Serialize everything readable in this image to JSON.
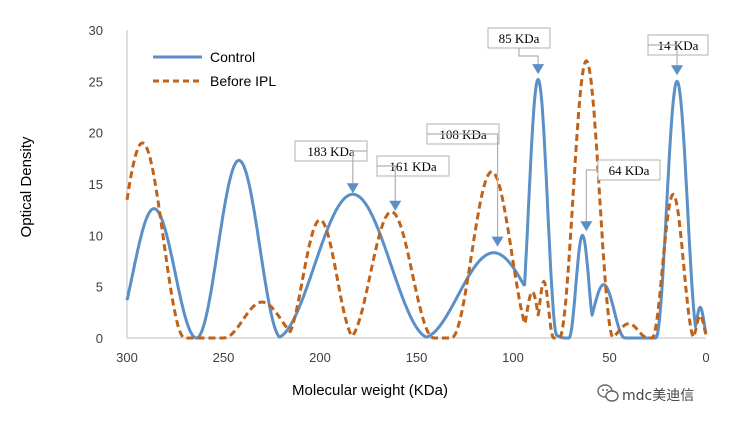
{
  "chart_data": {
    "type": "line",
    "title": "",
    "xlabel": "Molecular weight (KDa)",
    "ylabel": "Optical Density",
    "xlim": [
      300,
      0
    ],
    "ylim": [
      0,
      30
    ],
    "xticks": [
      "300",
      "250",
      "200",
      "150",
      "100",
      "50",
      "0"
    ],
    "yticks": [
      "0",
      "5",
      "10",
      "15",
      "20",
      "25",
      "30"
    ],
    "grid": false,
    "legend_position": "top-left",
    "series": [
      {
        "name": "Control",
        "color": "#5b8fc7",
        "style": "solid",
        "peaks": [
          {
            "center": 286,
            "height": 12.6,
            "halfwidth": 22
          },
          {
            "center": 242,
            "height": 17.3,
            "halfwidth": 22
          },
          {
            "center": 200,
            "height": 6.5,
            "halfwidth": 9
          },
          {
            "center": 183,
            "height": 14.0,
            "halfwidth": 40
          },
          {
            "center": 110,
            "height": 8.3,
            "halfwidth": 37
          },
          {
            "center": 87,
            "height": 25.2,
            "halfwidth": 10
          },
          {
            "center": 64,
            "height": 10.0,
            "halfwidth": 7
          },
          {
            "center": 53,
            "height": 5.2,
            "halfwidth": 11
          },
          {
            "center": 15,
            "height": 25.0,
            "halfwidth": 11
          },
          {
            "center": 3,
            "height": 3.0,
            "halfwidth": 4
          }
        ]
      },
      {
        "name": "Before IPL",
        "color": "#c0621a",
        "style": "dashed",
        "peaks": [
          {
            "center": 292,
            "height": 19.0,
            "halfwidth": 22
          },
          {
            "center": 230,
            "height": 3.5,
            "halfwidth": 20
          },
          {
            "center": 200,
            "height": 11.5,
            "halfwidth": 18
          },
          {
            "center": 163,
            "height": 12.3,
            "halfwidth": 22
          },
          {
            "center": 111,
            "height": 16.2,
            "halfwidth": 21
          },
          {
            "center": 90,
            "height": 4.5,
            "halfwidth": 6
          },
          {
            "center": 84,
            "height": 5.5,
            "halfwidth": 5
          },
          {
            "center": 62,
            "height": 27.0,
            "halfwidth": 14
          },
          {
            "center": 40,
            "height": 1.4,
            "halfwidth": 10
          },
          {
            "center": 17,
            "height": 14.0,
            "halfwidth": 11
          },
          {
            "center": 3,
            "height": 2.2,
            "halfwidth": 4
          }
        ]
      }
    ],
    "annotations": [
      {
        "label": "183 KDa",
        "x": 183,
        "y": 14.0
      },
      {
        "label": "161 KDa",
        "x": 161,
        "y": 12.3
      },
      {
        "label": "108 KDa",
        "x": 108,
        "y": 8.8
      },
      {
        "label": "85 KDa",
        "x": 87,
        "y": 25.6
      },
      {
        "label": "64 KDa",
        "x": 62,
        "y": 10.3
      },
      {
        "label": "14 KDa",
        "x": 15,
        "y": 25.5
      }
    ]
  },
  "watermark": {
    "text": "mdc美迪信",
    "icon": "wechat-icon"
  }
}
